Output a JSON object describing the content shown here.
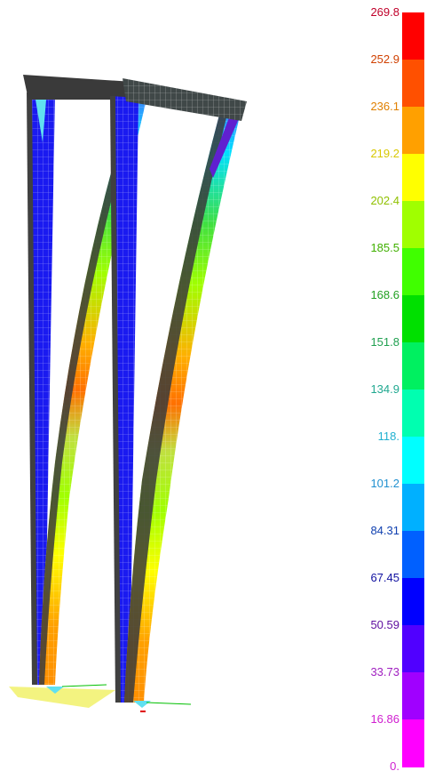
{
  "legend": {
    "labels": [
      "269.8",
      "252.9",
      "236.1",
      "219.2",
      "202.4",
      "185.5",
      "168.6",
      "151.8",
      "134.9",
      "118.",
      "101.2",
      "84.31",
      "67.45",
      "50.59",
      "33.73",
      "16.86",
      "0."
    ],
    "label_colors": [
      "#c0002a",
      "#d04000",
      "#e08000",
      "#d8c800",
      "#90c000",
      "#40b000",
      "#20a020",
      "#20a050",
      "#20a890",
      "#20b0d0",
      "#2090d0",
      "#1040b0",
      "#1010a0",
      "#6010a0",
      "#a020c0",
      "#d020d0",
      "#d020d0"
    ],
    "band_colors": [
      "#ff0000",
      "#ff5000",
      "#ffa000",
      "#ffff00",
      "#a0ff00",
      "#40ff00",
      "#00e000",
      "#00f060",
      "#00ffb0",
      "#00ffff",
      "#00b0ff",
      "#0060ff",
      "#0000ff",
      "#5000ff",
      "#a000ff",
      "#ff00ff"
    ]
  }
}
